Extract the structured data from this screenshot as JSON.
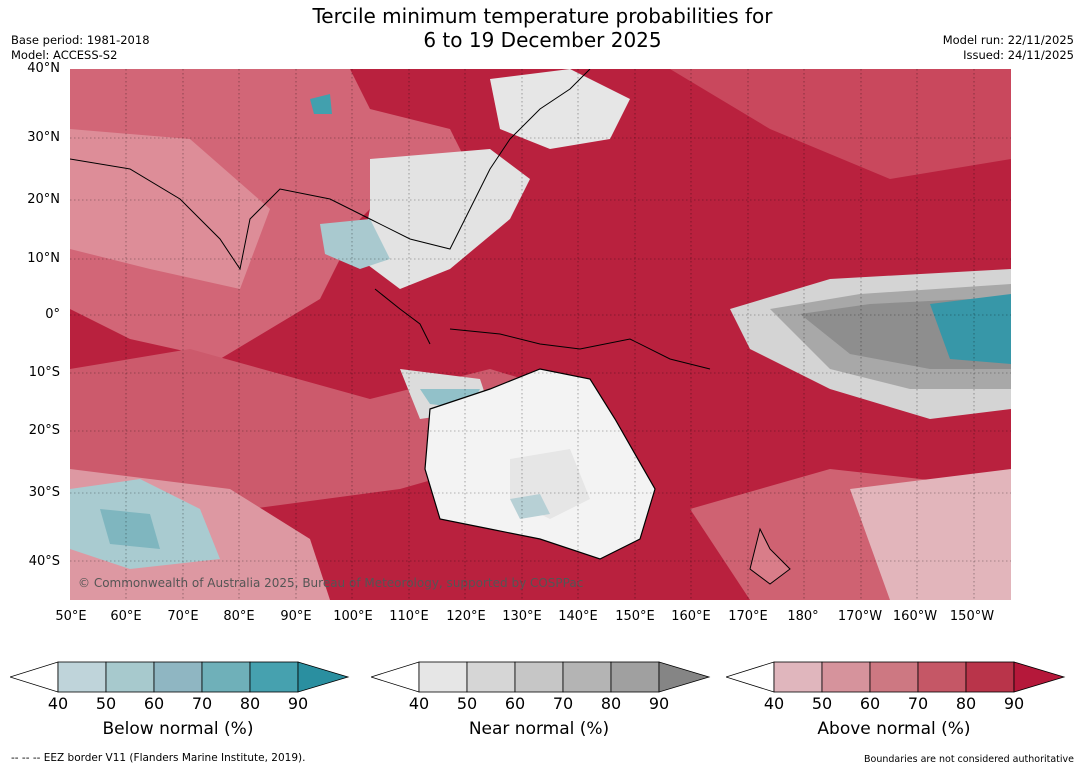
{
  "header": {
    "title_line1": "Tercile minimum temperature probabilities for",
    "title_line2": "6 to 19 December 2025",
    "base_period": "Base period: 1981-2018",
    "model": "Model: ACCESS-S2",
    "model_run": "Model run: 22/11/2025",
    "issued": "Issued: 24/11/2025"
  },
  "map": {
    "credit": "© Commonwealth of Australia 2025, Bureau of Meteorology, supported by COSPPac",
    "lat_labels": [
      "40°N",
      "30°N",
      "20°N",
      "10°N",
      "0°",
      "10°S",
      "20°S",
      "30°S",
      "40°S"
    ],
    "lon_labels": [
      "50°E",
      "60°E",
      "70°E",
      "80°E",
      "90°E",
      "100°E",
      "110°E",
      "120°E",
      "130°E",
      "140°E",
      "150°E",
      "160°E",
      "170°E",
      "180°",
      "170°W",
      "160°W",
      "150°W"
    ]
  },
  "legends": {
    "below": {
      "caption": "Below normal (%)",
      "ticks": [
        "40",
        "50",
        "60",
        "70",
        "80",
        "90"
      ],
      "colors": [
        "#bfd4da",
        "#a7c9cd",
        "#8fb6c2",
        "#6fb0b9",
        "#46a1af",
        "#2a8fa0"
      ]
    },
    "near": {
      "caption": "Near normal (%)",
      "ticks": [
        "40",
        "50",
        "60",
        "70",
        "80",
        "90"
      ],
      "colors": [
        "#e6e6e6",
        "#d6d6d6",
        "#c6c6c6",
        "#b4b4b4",
        "#a0a0a0",
        "#858585"
      ]
    },
    "above": {
      "caption": "Above normal (%)",
      "ticks": [
        "40",
        "50",
        "60",
        "70",
        "80",
        "90"
      ],
      "colors": [
        "#e0b6bd",
        "#d6939c",
        "#cd7882",
        "#c55766",
        "#b9344a",
        "#b5183a"
      ]
    }
  },
  "footer": {
    "eez_note": "--  --  -- EEZ border V11 (Flanders Marine Institute, 2019).",
    "disclaimer": "Boundaries are not considered authoritative"
  }
}
